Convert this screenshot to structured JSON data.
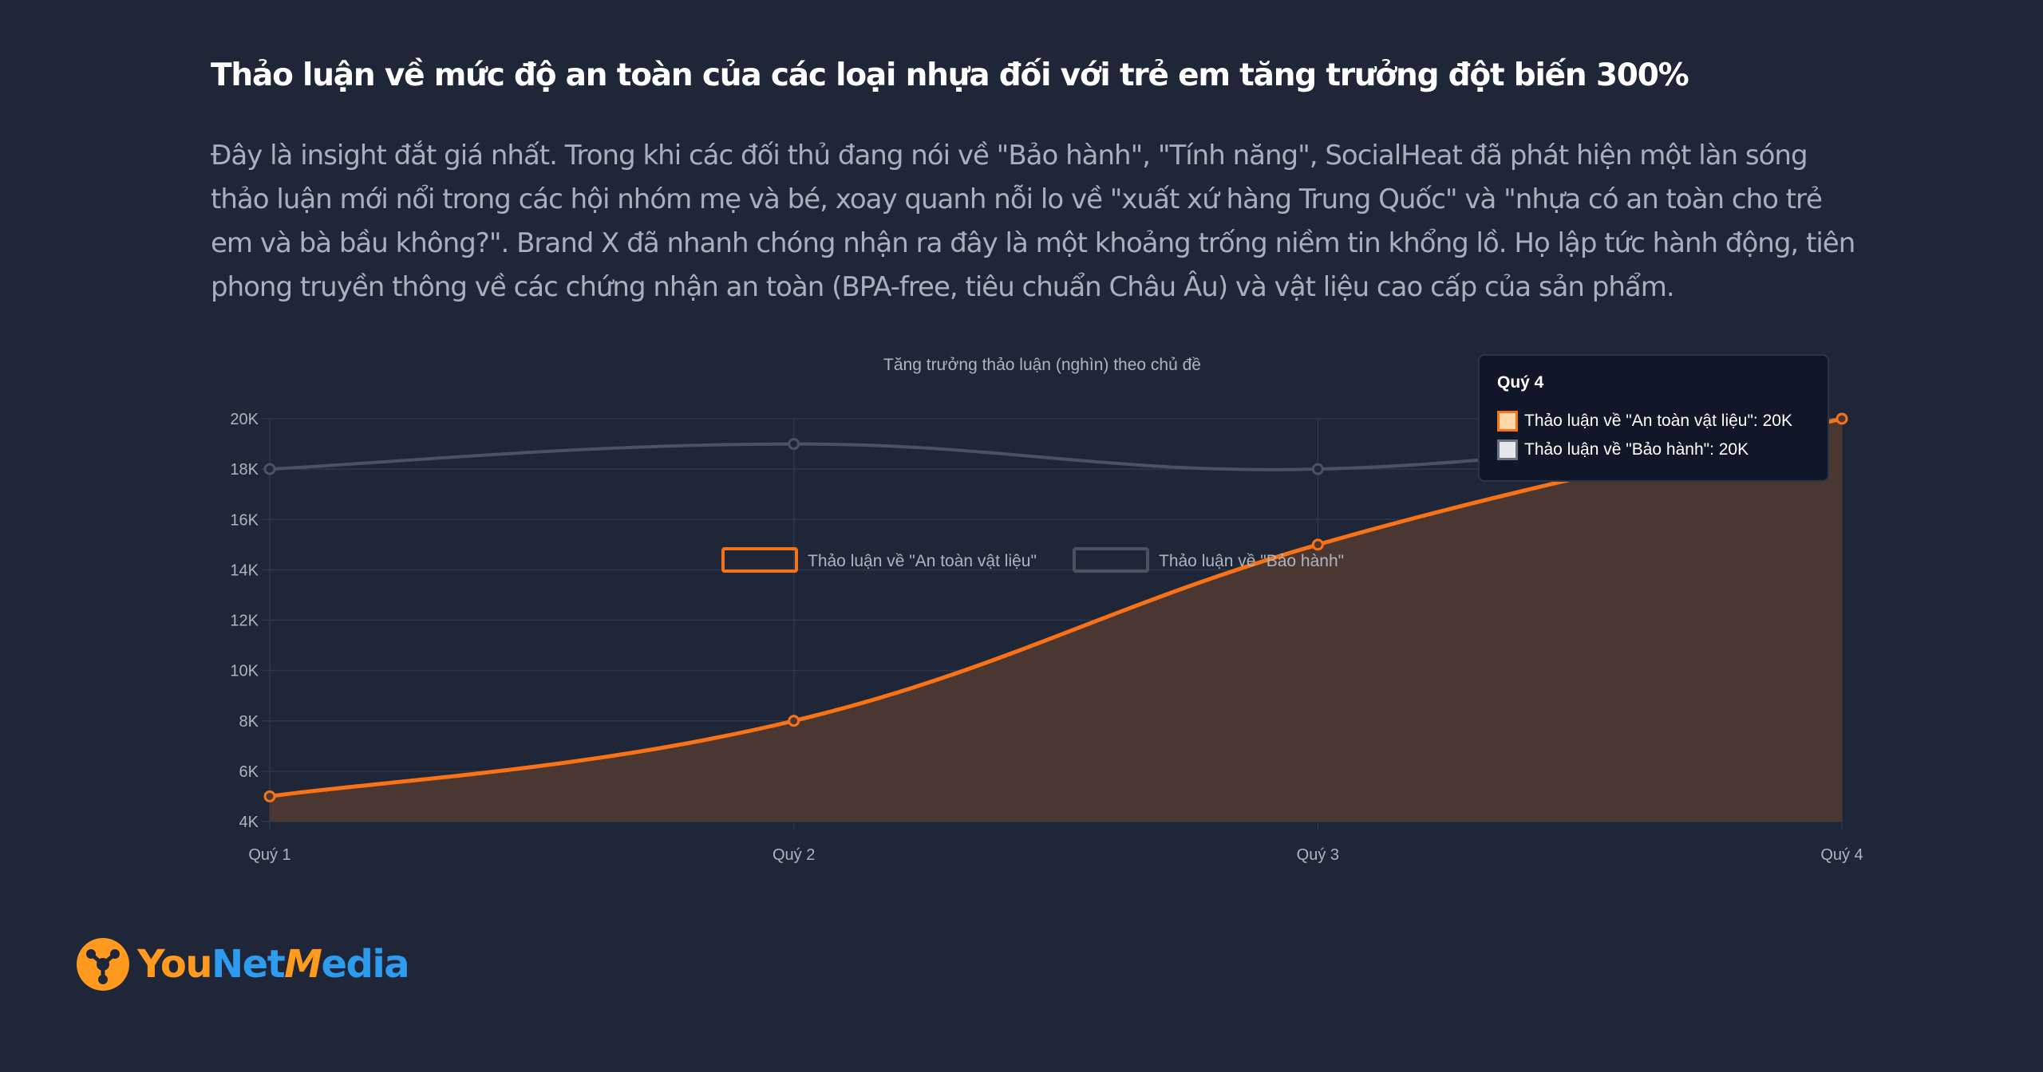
{
  "heading": "Thảo luận về mức độ an toàn của các loại nhựa đối với trẻ em tăng trưởng đột biến 300%",
  "description": "Đây là insight đắt giá nhất. Trong khi các đối thủ đang nói về \"Bảo hành\", \"Tính năng\", SocialHeat đã phát hiện một làn sóng thảo luận mới nổi trong các hội nhóm mẹ và bé, xoay quanh nỗi lo về \"xuất xứ hàng Trung Quốc\" và \"nhựa có an toàn cho trẻ em và bà bầu không?\". Brand X đã nhanh chóng nhận ra đây là một khoảng trống niềm tin khổng lồ. Họ lập tức hành động, tiên phong truyền thông về các chứng nhận an toàn (BPA-free, tiêu chuẩn Châu Âu) và vật liệu cao cấp của sản phẩm.",
  "chart_data": {
    "type": "line",
    "title": "Tăng trưởng thảo luận (nghìn) theo chủ đề",
    "categories": [
      "Quý 1",
      "Quý 2",
      "Quý 3",
      "Quý 4"
    ],
    "series": [
      {
        "name": "Thảo luận về \"An toàn vật liệu\"",
        "values": [
          5,
          8,
          15,
          20
        ],
        "color": "#f97316",
        "fill": "#4a3731"
      },
      {
        "name": "Thảo luận về \"Bảo hành\"",
        "values": [
          18,
          19,
          18,
          20
        ],
        "color": "#4b5363"
      }
    ],
    "y_ticks": [
      "4K",
      "6K",
      "8K",
      "10K",
      "12K",
      "14K",
      "16K",
      "18K",
      "20K"
    ],
    "ylim": [
      4,
      20
    ],
    "grid": true,
    "legend": "bottom"
  },
  "tooltip": {
    "title": "Quý 4",
    "rows": [
      {
        "label": "Thảo luận về \"An toàn vật liệu\": 20K",
        "color": "#f97316",
        "fill": "#fed7aa"
      },
      {
        "label": "Thảo luận về \"Bảo hành\": 20K",
        "color": "#6b7280",
        "fill": "#e5e7eb"
      }
    ]
  },
  "logo": {
    "part1": "You",
    "part2": "Net",
    "part3": "M",
    "part4": "edia"
  }
}
